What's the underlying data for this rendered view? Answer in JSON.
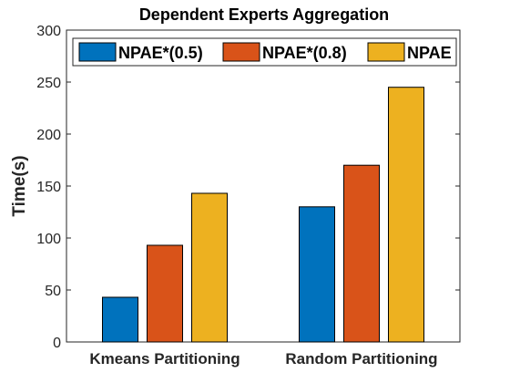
{
  "chart_data": {
    "type": "bar",
    "title": "Dependent Experts Aggregation",
    "xlabel": "",
    "ylabel": "Time(s)",
    "ylim": [
      0,
      300
    ],
    "yticks": [
      0,
      50,
      100,
      150,
      200,
      250,
      300
    ],
    "grid": false,
    "legend_position": "top",
    "categories": [
      "Kmeans Partitioning",
      "Random Partitioning"
    ],
    "series": [
      {
        "name": "NPAE*(0.5)",
        "color": "#0072bd",
        "values": [
          43,
          130
        ]
      },
      {
        "name": "NPAE*(0.8)",
        "color": "#d95319",
        "values": [
          93,
          170
        ]
      },
      {
        "name": "NPAE",
        "color": "#edb120",
        "values": [
          143,
          245
        ]
      }
    ]
  }
}
